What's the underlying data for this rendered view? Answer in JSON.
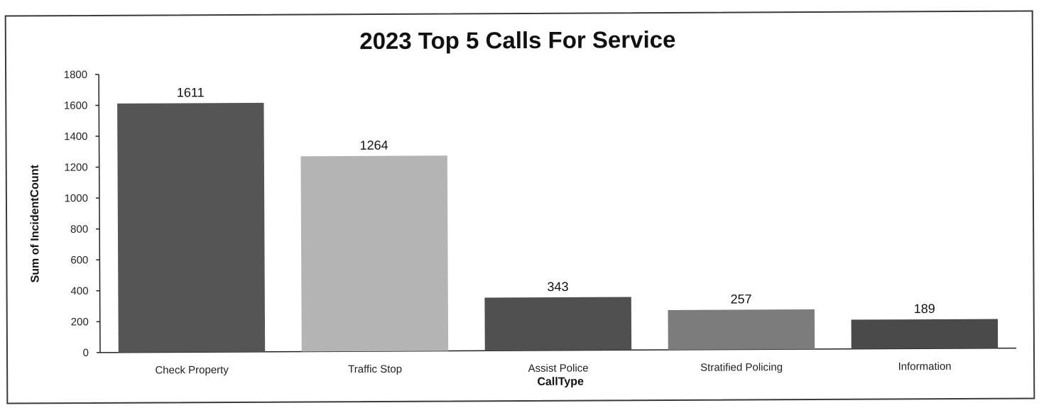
{
  "chart_data": {
    "type": "bar",
    "title": "2023 Top 5 Calls For Service",
    "xlabel": "CallType",
    "ylabel": "Sum of IncidentCount",
    "categories": [
      "Check Property",
      "Traffic Stop",
      "Assist Police",
      "Stratified Policing",
      "Information"
    ],
    "values": [
      1611,
      1264,
      343,
      257,
      189
    ],
    "data_labels": [
      "1611",
      "1264",
      "343",
      "257",
      "189"
    ],
    "ylim": [
      0,
      1800
    ],
    "yticks": [
      0,
      200,
      400,
      600,
      800,
      1000,
      1200,
      1400,
      1600,
      1800
    ],
    "grid": false,
    "legend": "none",
    "bar_colors": [
      "#555555",
      "#b4b4b4",
      "#505050",
      "#7c7c7c",
      "#4a4a4a"
    ]
  }
}
